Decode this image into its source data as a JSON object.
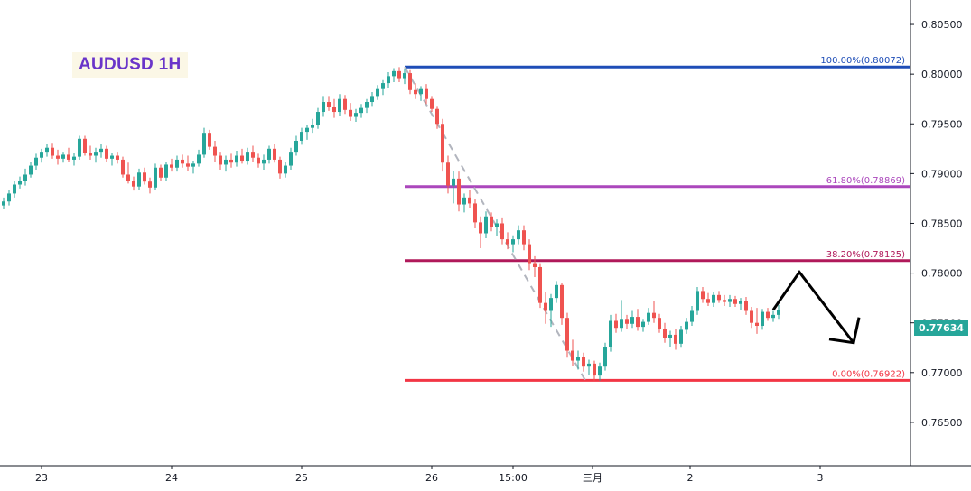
{
  "chart_data": {
    "type": "candlestick",
    "title": "AUDUSD 1H",
    "symbol": "AUDUSD",
    "timeframe": "1H",
    "ylim": [
      0.761,
      0.807
    ],
    "y_ticks": [
      "0.80500",
      "0.80000",
      "0.79500",
      "0.79000",
      "0.78500",
      "0.78000",
      "0.77500",
      "0.77000",
      "0.76500"
    ],
    "x_ticks": [
      "23",
      "24",
      "25",
      "26",
      "15:00",
      "三月",
      "2",
      "3"
    ],
    "last_price": "0.77634",
    "colors": {
      "up": "#26a69a",
      "down": "#ef5350",
      "title": "#6a35c9"
    },
    "fib_levels": [
      {
        "label": "100.00%(0.80072)",
        "value": 0.80072,
        "color": "#1e4db7"
      },
      {
        "label": "61.80%(0.78869)",
        "value": 0.78869,
        "color": "#ab47bc"
      },
      {
        "label": "38.20%(0.78125)",
        "value": 0.78125,
        "color": "#b0195a"
      },
      {
        "label": "0.00%(0.76922)",
        "value": 0.76922,
        "color": "#f23645"
      }
    ],
    "trend_line": {
      "from": 0.80072,
      "to": 0.76922,
      "style": "dashed",
      "color": "#b2b5be"
    },
    "projection_arrow": {
      "points": [
        0.7763,
        0.7801,
        0.773
      ],
      "color": "#000000"
    },
    "ohlc": [
      [
        0.7868,
        0.7876,
        0.7864,
        0.7872
      ],
      [
        0.7872,
        0.7884,
        0.7868,
        0.788
      ],
      [
        0.788,
        0.7893,
        0.7876,
        0.7889
      ],
      [
        0.7889,
        0.7897,
        0.7885,
        0.7893
      ],
      [
        0.7893,
        0.7905,
        0.7888,
        0.7899
      ],
      [
        0.7899,
        0.7912,
        0.7896,
        0.7908
      ],
      [
        0.7908,
        0.792,
        0.7904,
        0.7916
      ],
      [
        0.7916,
        0.7925,
        0.7911,
        0.7922
      ],
      [
        0.7922,
        0.793,
        0.7917,
        0.7926
      ],
      [
        0.7926,
        0.7931,
        0.7915,
        0.7918
      ],
      [
        0.7918,
        0.7924,
        0.7909,
        0.7915
      ],
      [
        0.7915,
        0.7922,
        0.7911,
        0.7919
      ],
      [
        0.7919,
        0.7926,
        0.7912,
        0.7914
      ],
      [
        0.7914,
        0.7921,
        0.7908,
        0.7917
      ],
      [
        0.7917,
        0.7938,
        0.7914,
        0.7935
      ],
      [
        0.7935,
        0.7938,
        0.7918,
        0.7921
      ],
      [
        0.7921,
        0.7928,
        0.7914,
        0.7918
      ],
      [
        0.7918,
        0.7926,
        0.7911,
        0.7922
      ],
      [
        0.7922,
        0.793,
        0.7916,
        0.7925
      ],
      [
        0.7925,
        0.7928,
        0.7912,
        0.7915
      ],
      [
        0.7915,
        0.7921,
        0.7908,
        0.7918
      ],
      [
        0.7918,
        0.7922,
        0.791,
        0.7914
      ],
      [
        0.7914,
        0.7917,
        0.7896,
        0.7899
      ],
      [
        0.7899,
        0.7911,
        0.789,
        0.7893
      ],
      [
        0.7893,
        0.7897,
        0.7883,
        0.7887
      ],
      [
        0.7887,
        0.7905,
        0.7884,
        0.7901
      ],
      [
        0.7901,
        0.7906,
        0.7889,
        0.7892
      ],
      [
        0.7892,
        0.7896,
        0.788,
        0.7886
      ],
      [
        0.7886,
        0.791,
        0.7884,
        0.7906
      ],
      [
        0.7906,
        0.7909,
        0.7893,
        0.7896
      ],
      [
        0.7896,
        0.7912,
        0.7893,
        0.7909
      ],
      [
        0.7909,
        0.7915,
        0.7902,
        0.7906
      ],
      [
        0.7906,
        0.7918,
        0.7902,
        0.7914
      ],
      [
        0.7914,
        0.7919,
        0.7906,
        0.791
      ],
      [
        0.791,
        0.7918,
        0.7903,
        0.7907
      ],
      [
        0.7907,
        0.7913,
        0.79,
        0.791
      ],
      [
        0.791,
        0.7924,
        0.7907,
        0.7919
      ],
      [
        0.7919,
        0.7946,
        0.7916,
        0.7941
      ],
      [
        0.7941,
        0.7944,
        0.7924,
        0.7927
      ],
      [
        0.7927,
        0.7933,
        0.7912,
        0.7918
      ],
      [
        0.7918,
        0.7922,
        0.7904,
        0.7909
      ],
      [
        0.7909,
        0.7918,
        0.7902,
        0.7914
      ],
      [
        0.7914,
        0.792,
        0.7906,
        0.7911
      ],
      [
        0.7911,
        0.7923,
        0.7907,
        0.7918
      ],
      [
        0.7918,
        0.7925,
        0.791,
        0.7913
      ],
      [
        0.7913,
        0.7926,
        0.7909,
        0.7922
      ],
      [
        0.7922,
        0.7928,
        0.7912,
        0.7916
      ],
      [
        0.7916,
        0.792,
        0.7906,
        0.791
      ],
      [
        0.791,
        0.7919,
        0.7904,
        0.7914
      ],
      [
        0.7914,
        0.7928,
        0.791,
        0.7925
      ],
      [
        0.7925,
        0.793,
        0.7911,
        0.7914
      ],
      [
        0.7914,
        0.7917,
        0.7895,
        0.79
      ],
      [
        0.79,
        0.7912,
        0.7896,
        0.7908
      ],
      [
        0.7908,
        0.7926,
        0.7904,
        0.7922
      ],
      [
        0.7922,
        0.7938,
        0.7918,
        0.7933
      ],
      [
        0.7933,
        0.7946,
        0.7929,
        0.7942
      ],
      [
        0.7942,
        0.7949,
        0.7934,
        0.7946
      ],
      [
        0.7946,
        0.7955,
        0.7941,
        0.7949
      ],
      [
        0.7949,
        0.7966,
        0.7945,
        0.7962
      ],
      [
        0.7962,
        0.7978,
        0.7957,
        0.7972
      ],
      [
        0.7972,
        0.7978,
        0.7963,
        0.7967
      ],
      [
        0.7967,
        0.7975,
        0.7956,
        0.7962
      ],
      [
        0.7962,
        0.798,
        0.7958,
        0.7975
      ],
      [
        0.7975,
        0.7979,
        0.796,
        0.7964
      ],
      [
        0.7964,
        0.7971,
        0.7953,
        0.7957
      ],
      [
        0.7957,
        0.7965,
        0.7952,
        0.7961
      ],
      [
        0.7961,
        0.797,
        0.7956,
        0.7966
      ],
      [
        0.7966,
        0.7975,
        0.7961,
        0.7972
      ],
      [
        0.7972,
        0.7982,
        0.7968,
        0.7978
      ],
      [
        0.7978,
        0.7989,
        0.7974,
        0.7985
      ],
      [
        0.7985,
        0.7994,
        0.7979,
        0.7991
      ],
      [
        0.7991,
        0.8002,
        0.7986,
        0.7998
      ],
      [
        0.7998,
        0.8006,
        0.7992,
        0.8003
      ],
      [
        0.8003,
        0.8007,
        0.7992,
        0.7996
      ],
      [
        0.7996,
        0.8005,
        0.799,
        0.8001
      ],
      [
        0.8001,
        0.8004,
        0.798,
        0.7984
      ],
      [
        0.7984,
        0.7991,
        0.7975,
        0.798
      ],
      [
        0.798,
        0.7988,
        0.7973,
        0.7985
      ],
      [
        0.7985,
        0.799,
        0.797,
        0.7975
      ],
      [
        0.7975,
        0.7978,
        0.7962,
        0.7965
      ],
      [
        0.7965,
        0.7968,
        0.7945,
        0.795
      ],
      [
        0.795,
        0.7955,
        0.7902,
        0.7911
      ],
      [
        0.7911,
        0.7918,
        0.788,
        0.7888
      ],
      [
        0.7888,
        0.7903,
        0.787,
        0.7895
      ],
      [
        0.7895,
        0.7902,
        0.7862,
        0.7869
      ],
      [
        0.7869,
        0.788,
        0.7861,
        0.7876
      ],
      [
        0.7876,
        0.7884,
        0.7865,
        0.787
      ],
      [
        0.787,
        0.7874,
        0.7845,
        0.7851
      ],
      [
        0.7851,
        0.7857,
        0.7825,
        0.784
      ],
      [
        0.784,
        0.7862,
        0.7835,
        0.7857
      ],
      [
        0.7857,
        0.7861,
        0.7842,
        0.7846
      ],
      [
        0.7846,
        0.7854,
        0.7837,
        0.785
      ],
      [
        0.785,
        0.7856,
        0.7829,
        0.7834
      ],
      [
        0.7834,
        0.7841,
        0.7824,
        0.7829
      ],
      [
        0.7829,
        0.7838,
        0.7821,
        0.7834
      ],
      [
        0.7834,
        0.7848,
        0.7829,
        0.7843
      ],
      [
        0.7843,
        0.7848,
        0.7823,
        0.7829
      ],
      [
        0.7829,
        0.7834,
        0.7803,
        0.781
      ],
      [
        0.781,
        0.7817,
        0.7796,
        0.7806
      ],
      [
        0.7806,
        0.781,
        0.7765,
        0.777
      ],
      [
        0.777,
        0.7781,
        0.7749,
        0.7762
      ],
      [
        0.7762,
        0.7779,
        0.7746,
        0.7775
      ],
      [
        0.7775,
        0.7792,
        0.777,
        0.7788
      ],
      [
        0.7788,
        0.779,
        0.7748,
        0.7755
      ],
      [
        0.7755,
        0.776,
        0.7715,
        0.7722
      ],
      [
        0.7722,
        0.7733,
        0.7707,
        0.7712
      ],
      [
        0.7712,
        0.7722,
        0.7703,
        0.7716
      ],
      [
        0.7716,
        0.772,
        0.7701,
        0.7706
      ],
      [
        0.7706,
        0.7713,
        0.7698,
        0.7709
      ],
      [
        0.7709,
        0.7712,
        0.7692,
        0.7697
      ],
      [
        0.7697,
        0.771,
        0.7692,
        0.7706
      ],
      [
        0.7706,
        0.773,
        0.7702,
        0.7726
      ],
      [
        0.7726,
        0.7758,
        0.7721,
        0.7752
      ],
      [
        0.7752,
        0.7759,
        0.774,
        0.7745
      ],
      [
        0.7745,
        0.7773,
        0.7741,
        0.7754
      ],
      [
        0.7754,
        0.7758,
        0.7744,
        0.7749
      ],
      [
        0.7749,
        0.7762,
        0.7745,
        0.7756
      ],
      [
        0.7756,
        0.7764,
        0.7742,
        0.7746
      ],
      [
        0.7746,
        0.7754,
        0.7741,
        0.7751
      ],
      [
        0.7751,
        0.7765,
        0.7748,
        0.776
      ],
      [
        0.776,
        0.7772,
        0.775,
        0.7755
      ],
      [
        0.7755,
        0.7759,
        0.774,
        0.7744
      ],
      [
        0.7744,
        0.775,
        0.773,
        0.7735
      ],
      [
        0.7735,
        0.7742,
        0.7726,
        0.7738
      ],
      [
        0.7738,
        0.7744,
        0.7723,
        0.7729
      ],
      [
        0.7729,
        0.7747,
        0.7725,
        0.7743
      ],
      [
        0.7743,
        0.7755,
        0.7739,
        0.7751
      ],
      [
        0.7751,
        0.7767,
        0.7747,
        0.7762
      ],
      [
        0.7762,
        0.7786,
        0.7758,
        0.7782
      ],
      [
        0.7782,
        0.7786,
        0.777,
        0.7774
      ],
      [
        0.7774,
        0.778,
        0.7767,
        0.777
      ],
      [
        0.777,
        0.7781,
        0.7766,
        0.7778
      ],
      [
        0.7778,
        0.7782,
        0.777,
        0.7773
      ],
      [
        0.7773,
        0.7778,
        0.7767,
        0.7771
      ],
      [
        0.7771,
        0.7778,
        0.7766,
        0.7774
      ],
      [
        0.7774,
        0.7777,
        0.7766,
        0.7769
      ],
      [
        0.7769,
        0.7775,
        0.7763,
        0.7772
      ],
      [
        0.7772,
        0.7776,
        0.7758,
        0.7762
      ],
      [
        0.7762,
        0.7766,
        0.7745,
        0.775
      ],
      [
        0.775,
        0.7765,
        0.7739,
        0.7747
      ],
      [
        0.7747,
        0.7764,
        0.7743,
        0.7761
      ],
      [
        0.7761,
        0.7765,
        0.7752,
        0.7755
      ],
      [
        0.7755,
        0.7762,
        0.7751,
        0.7758
      ],
      [
        0.7758,
        0.7768,
        0.7754,
        0.7763
      ]
    ]
  }
}
